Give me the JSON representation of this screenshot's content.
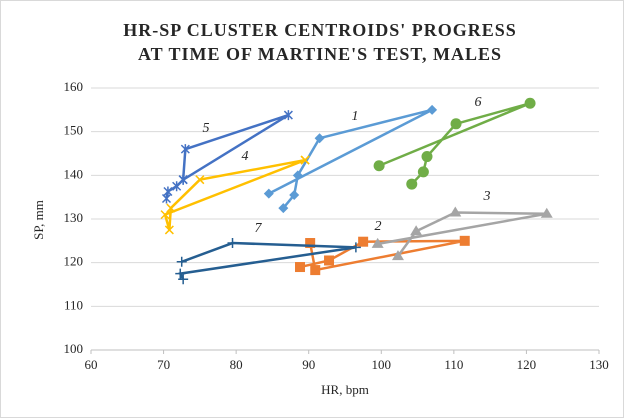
{
  "chart_data": {
    "type": "line",
    "title": [
      "HR-SP CLUSTER CENTROIDS' PROGRESS",
      "AT TIME OF MARTINE'S TEST, MALES"
    ],
    "xlabel": "HR, bpm",
    "ylabel": "SP, mm",
    "xlim": [
      60,
      130
    ],
    "xticks": [
      60,
      70,
      80,
      90,
      100,
      110,
      120,
      130
    ],
    "ylim": [
      100,
      160
    ],
    "yticks": [
      100,
      110,
      120,
      130,
      140,
      150,
      160
    ],
    "grid": true,
    "series": [
      {
        "name": "1",
        "color": "#5b9bd5",
        "marker": "diamond",
        "x": [
          84.5,
          107,
          91.5,
          88.5,
          88,
          86.5
        ],
        "values": [
          135.8,
          155,
          148.5,
          140,
          135.5,
          132.5
        ]
      },
      {
        "name": "2",
        "color": "#ed7d31",
        "marker": "square",
        "x": [
          90.2,
          90.9,
          111.5,
          97.5,
          92.8,
          88.8
        ],
        "values": [
          124.5,
          118.3,
          125,
          124.8,
          120.5,
          119
        ]
      },
      {
        "name": "3",
        "color": "#a5a5a5",
        "marker": "triangle",
        "x": [
          99.5,
          122.8,
          110.2,
          104.8,
          102.3
        ],
        "values": [
          124.3,
          131.2,
          131.5,
          127.2,
          121.5
        ]
      },
      {
        "name": "4",
        "color": "#ffc000",
        "marker": "x",
        "x": [
          89.5,
          70.2,
          70.8,
          71,
          75,
          89.5
        ],
        "values": [
          143.5,
          131,
          127.5,
          132.5,
          139,
          143.5
        ]
      },
      {
        "name": "5",
        "color": "#4472c4",
        "marker": "star",
        "x": [
          70.4,
          70.6,
          71.8,
          72.7,
          87.2,
          73,
          72.7
        ],
        "values": [
          134.7,
          136.3,
          137.5,
          139,
          153.8,
          146,
          139
        ]
      },
      {
        "name": "6",
        "color": "#70ad47",
        "marker": "circle",
        "x": [
          99.7,
          120.5,
          110.3,
          106.3,
          105.8,
          104.2
        ],
        "values": [
          142.2,
          156.5,
          151.8,
          144.3,
          140.8,
          138
        ]
      },
      {
        "name": "7",
        "color": "#255e91",
        "marker": "plus",
        "x": [
          72.5,
          79.5,
          96.5,
          72.3,
          72.7
        ],
        "values": [
          120.2,
          124.5,
          123.5,
          117.5,
          116.2
        ]
      }
    ]
  }
}
